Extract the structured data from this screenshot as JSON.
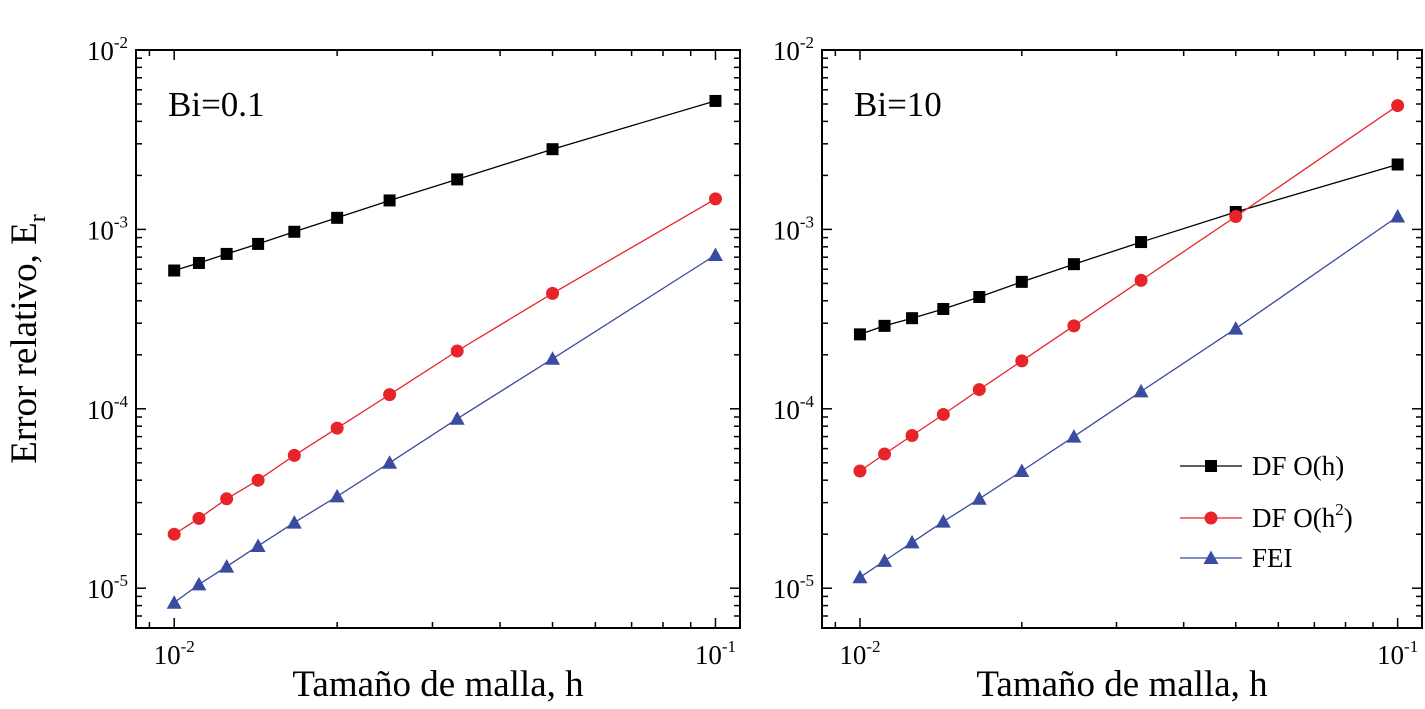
{
  "chart_data": [
    {
      "type": "line",
      "title": "",
      "annotation": "Bi=0.1",
      "xlabel": "Tamaño de malla, h",
      "ylabel": "Error relativo, E",
      "ylabel_sub": "r",
      "xscale": "log",
      "yscale": "log",
      "xlim": [
        0.0085,
        0.111
      ],
      "ylim": [
        6e-06,
        0.01
      ],
      "xticks": [
        0.01,
        0.1
      ],
      "xtick_labels": [
        {
          "base": "10",
          "exp": "-2"
        },
        {
          "base": "10",
          "exp": "-1"
        }
      ],
      "yticks": [
        1e-05,
        0.0001,
        0.001,
        0.01
      ],
      "ytick_labels": [
        {
          "base": "10",
          "exp": "-5"
        },
        {
          "base": "10",
          "exp": "-4"
        },
        {
          "base": "10",
          "exp": "-3"
        },
        {
          "base": "10",
          "exp": "-2"
        }
      ],
      "grid": false,
      "x": [
        0.01,
        0.01111,
        0.0125,
        0.01429,
        0.01667,
        0.02,
        0.025,
        0.03333,
        0.05,
        0.1
      ],
      "series": [
        {
          "name": "DF O(h)",
          "marker": "square",
          "color": "#000000",
          "line_color": "#000000",
          "values": [
            0.00059,
            0.00065,
            0.00073,
            0.00083,
            0.00097,
            0.00116,
            0.00145,
            0.0019,
            0.0028,
            0.0052
          ]
        },
        {
          "name": "DF O(h2)",
          "marker": "circle",
          "color": "#e8242b",
          "line_color": "#e8242b",
          "values": [
            2e-05,
            2.45e-05,
            3.15e-05,
            4e-05,
            5.5e-05,
            7.8e-05,
            0.00012,
            0.00021,
            0.00044,
            0.00148
          ]
        },
        {
          "name": "FEI",
          "marker": "triangle",
          "color": "#3a4ba0",
          "line_color": "#3a4ba0",
          "values": [
            8.3e-06,
            1.05e-05,
            1.32e-05,
            1.72e-05,
            2.32e-05,
            3.25e-05,
            5e-05,
            8.8e-05,
            0.00019,
            0.00072
          ]
        }
      ]
    },
    {
      "type": "line",
      "title": "",
      "annotation": "Bi=10",
      "xlabel": "Tamaño de malla, h",
      "ylabel": "",
      "xscale": "log",
      "yscale": "log",
      "xlim": [
        0.0085,
        0.111
      ],
      "ylim": [
        6e-06,
        0.01
      ],
      "xticks": [
        0.01,
        0.1
      ],
      "xtick_labels": [
        {
          "base": "10",
          "exp": "-2"
        },
        {
          "base": "10",
          "exp": "-1"
        }
      ],
      "yticks": [
        1e-05,
        0.0001,
        0.001,
        0.01
      ],
      "ytick_labels": [
        {
          "base": "10",
          "exp": "-5"
        },
        {
          "base": "10",
          "exp": "-4"
        },
        {
          "base": "10",
          "exp": "-3"
        },
        {
          "base": "10",
          "exp": "-2"
        }
      ],
      "grid": false,
      "legend_position": "bottom-right",
      "x": [
        0.01,
        0.01111,
        0.0125,
        0.01429,
        0.01667,
        0.02,
        0.025,
        0.03333,
        0.05,
        0.1
      ],
      "series": [
        {
          "name": "DF O(h)",
          "marker": "square",
          "color": "#000000",
          "line_color": "#000000",
          "values": [
            0.00026,
            0.00029,
            0.00032,
            0.00036,
            0.00042,
            0.00051,
            0.00064,
            0.00085,
            0.00125,
            0.0023
          ]
        },
        {
          "name": "DF O(h2)",
          "marker": "circle",
          "color": "#e8242b",
          "line_color": "#e8242b",
          "values": [
            4.5e-05,
            5.6e-05,
            7.1e-05,
            9.3e-05,
            0.000128,
            0.000185,
            0.00029,
            0.00052,
            0.00118,
            0.0049
          ]
        },
        {
          "name": "FEI",
          "marker": "triangle",
          "color": "#3a4ba0",
          "line_color": "#3a4ba0",
          "values": [
            1.15e-05,
            1.42e-05,
            1.8e-05,
            2.35e-05,
            3.15e-05,
            4.5e-05,
            7e-05,
            0.000125,
            0.00028,
            0.00118
          ]
        }
      ]
    }
  ],
  "legend": {
    "items": [
      {
        "label": "DF O(h",
        "sup": "",
        "suffix": ")",
        "full": "DF O(h)"
      },
      {
        "label": "DF O(h",
        "sup": "2",
        "suffix": ")",
        "full": "DF O(h2)"
      },
      {
        "label": "FEI",
        "sup": "",
        "suffix": "",
        "full": "FEI"
      }
    ]
  }
}
